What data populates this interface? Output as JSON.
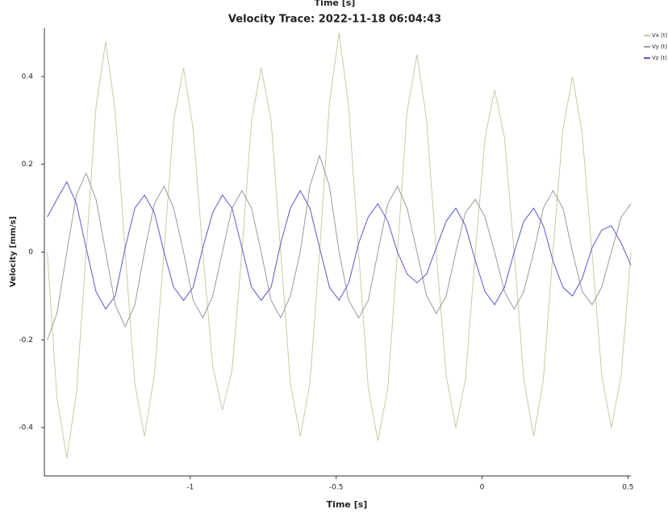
{
  "chart_data": {
    "type": "line",
    "top_label": "Time [s]",
    "title": "Velocity Trace: 2022-11-18 06:04:43",
    "xlabel": "Time [s]",
    "ylabel": "Velocity [mm/s]",
    "xlim": [
      -1.5,
      0.51
    ],
    "xticks": [
      -1,
      -0.5,
      0,
      0.5
    ],
    "ylim": [
      -0.51,
      0.51
    ],
    "yticks": [
      -0.4,
      -0.2,
      0,
      0.2,
      0.4
    ],
    "grid": false,
    "legend": "upper right",
    "x": [
      -1.49,
      -1.457,
      -1.423,
      -1.39,
      -1.357,
      -1.323,
      -1.29,
      -1.257,
      -1.223,
      -1.19,
      -1.157,
      -1.123,
      -1.09,
      -1.057,
      -1.023,
      -0.99,
      -0.957,
      -0.923,
      -0.89,
      -0.857,
      -0.823,
      -0.79,
      -0.757,
      -0.723,
      -0.69,
      -0.657,
      -0.623,
      -0.59,
      -0.557,
      -0.523,
      -0.49,
      -0.457,
      -0.423,
      -0.39,
      -0.357,
      -0.323,
      -0.29,
      -0.257,
      -0.223,
      -0.19,
      -0.157,
      -0.123,
      -0.09,
      -0.057,
      -0.023,
      0.01,
      0.043,
      0.077,
      0.11,
      0.143,
      0.177,
      0.21,
      0.243,
      0.277,
      0.31,
      0.343,
      0.377,
      0.41,
      0.443,
      0.477,
      0.51
    ],
    "series": [
      {
        "name": "Vx (t)",
        "color": "#c9c9a6",
        "values": [
          0,
          -0.33,
          -0.47,
          -0.32,
          0,
          0.33,
          0.48,
          0.32,
          0,
          -0.3,
          -0.42,
          -0.28,
          0,
          0.3,
          0.42,
          0.28,
          0,
          -0.26,
          -0.36,
          -0.27,
          0,
          0.3,
          0.42,
          0.3,
          0,
          -0.3,
          -0.42,
          -0.3,
          0,
          0.34,
          0.5,
          0.33,
          0,
          -0.31,
          -0.43,
          -0.31,
          0,
          0.32,
          0.45,
          0.3,
          0,
          -0.28,
          -0.4,
          -0.29,
          0,
          0.26,
          0.37,
          0.26,
          0,
          -0.29,
          -0.42,
          -0.29,
          0,
          0.28,
          0.4,
          0.27,
          0,
          -0.28,
          -0.4,
          -0.28,
          0
        ]
      },
      {
        "name": "Vy (t)",
        "color": "#9a9a9a",
        "values": [
          -0.2,
          -0.14,
          0,
          0.13,
          0.18,
          0.12,
          0,
          -0.12,
          -0.17,
          -0.12,
          0,
          0.11,
          0.15,
          0.1,
          0,
          -0.11,
          -0.15,
          -0.1,
          0,
          0.1,
          0.14,
          0.1,
          0,
          -0.11,
          -0.15,
          -0.1,
          0,
          0.15,
          0.22,
          0.15,
          0,
          -0.11,
          -0.15,
          -0.11,
          0,
          0.11,
          0.15,
          0.1,
          0,
          -0.1,
          -0.14,
          -0.1,
          0,
          0.09,
          0.12,
          0.08,
          0,
          -0.09,
          -0.13,
          -0.09,
          0,
          0.1,
          0.14,
          0.1,
          0,
          -0.09,
          -0.12,
          -0.08,
          0,
          0.08,
          0.11
        ]
      },
      {
        "name": "Vz (t)",
        "color": "#5a5ac8",
        "values": [
          0.08,
          0.12,
          0.16,
          0.11,
          0.01,
          -0.09,
          -0.13,
          -0.1,
          0.01,
          0.1,
          0.13,
          0.09,
          0,
          -0.08,
          -0.11,
          -0.08,
          0.01,
          0.09,
          0.13,
          0.1,
          0.01,
          -0.08,
          -0.11,
          -0.08,
          0.02,
          0.1,
          0.14,
          0.1,
          0.01,
          -0.08,
          -0.11,
          -0.07,
          0.02,
          0.08,
          0.11,
          0.07,
          0,
          -0.05,
          -0.07,
          -0.05,
          0.01,
          0.07,
          0.1,
          0.06,
          -0.02,
          -0.09,
          -0.12,
          -0.08,
          0,
          0.07,
          0.1,
          0.06,
          -0.02,
          -0.08,
          -0.1,
          -0.06,
          0.01,
          0.05,
          0.06,
          0.02,
          -0.03
        ]
      }
    ]
  }
}
